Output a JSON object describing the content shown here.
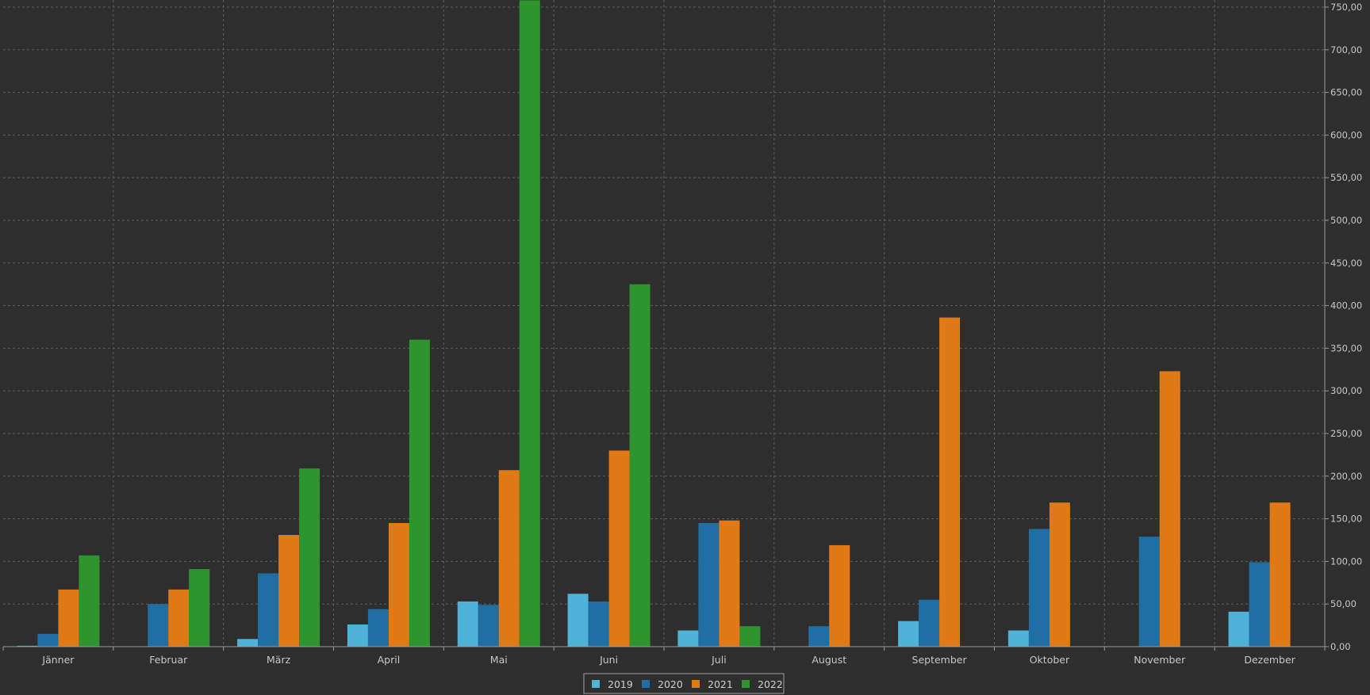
{
  "chart_data": {
    "type": "bar",
    "title": "",
    "xlabel": "",
    "ylabel": "",
    "ylim": [
      0,
      750
    ],
    "y_ticks": [
      0,
      50,
      100,
      150,
      200,
      250,
      300,
      350,
      400,
      450,
      500,
      550,
      600,
      650,
      700,
      750
    ],
    "y_tick_labels": [
      "0,00",
      "50,00",
      "100,00",
      "150,00",
      "200,00",
      "250,00",
      "300,00",
      "350,00",
      "400,00",
      "450,00",
      "500,00",
      "550,00",
      "600,00",
      "650,00",
      "700,00",
      "750,00"
    ],
    "y_axis_side": "right",
    "grid": true,
    "legend_position": "bottom-center",
    "categories": [
      "Jänner",
      "Februar",
      "März",
      "April",
      "Mai",
      "Juni",
      "Juli",
      "August",
      "September",
      "Oktober",
      "November",
      "Dezember"
    ],
    "series": [
      {
        "name": "2019",
        "color": "#4fb3d9",
        "values": [
          1,
          0,
          9,
          26,
          53,
          62,
          19,
          0,
          30,
          19,
          0,
          41
        ]
      },
      {
        "name": "2020",
        "color": "#1f6fa5",
        "values": [
          15,
          50,
          86,
          44,
          49,
          53,
          145,
          24,
          55,
          138,
          129,
          99
        ]
      },
      {
        "name": "2021",
        "color": "#e07a16",
        "values": [
          67,
          67,
          131,
          145,
          207,
          230,
          148,
          119,
          386,
          169,
          323,
          169
        ]
      },
      {
        "name": "2022",
        "color": "#2e952e",
        "values": [
          107,
          91,
          209,
          360,
          758,
          425,
          24,
          0,
          0,
          0,
          0,
          0
        ]
      }
    ]
  }
}
